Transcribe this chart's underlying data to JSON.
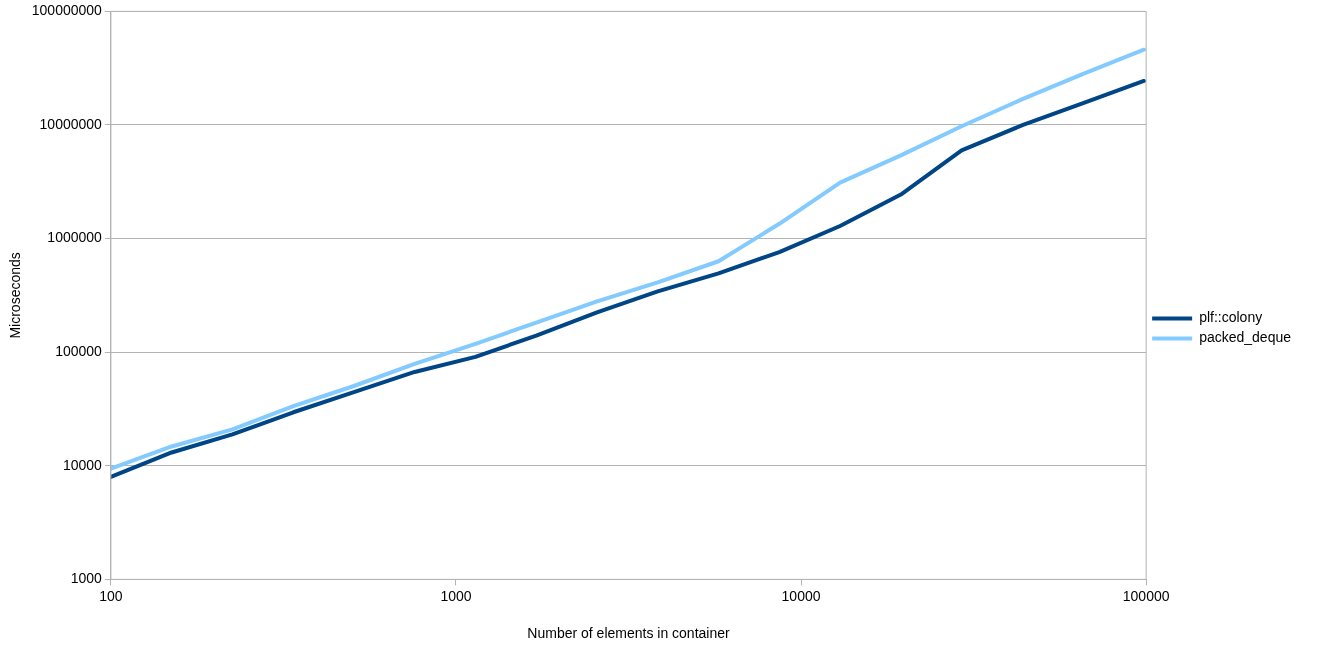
{
  "chart_data": {
    "type": "line",
    "xlabel": "Number of elements in container",
    "ylabel": "Microseconds",
    "x": [
      100,
      150,
      225,
      338,
      506,
      759,
      1139,
      1709,
      2563,
      3844,
      5767,
      8650,
      12975,
      19462,
      29193,
      43789,
      65684,
      98526
    ],
    "series": [
      {
        "name": "plf::colony",
        "color": "#004586",
        "values": [
          8000,
          13100,
          18900,
          29600,
          44600,
          67000,
          91000,
          140000,
          224000,
          343000,
          495000,
          760000,
          1290000,
          2440000,
          5980000,
          9960000,
          15600000,
          24400000
        ]
      },
      {
        "name": "packed_deque",
        "color": "#83caff",
        "values": [
          9440,
          14800,
          20900,
          33500,
          50400,
          78900,
          118600,
          182000,
          280000,
          412000,
          632000,
          1350000,
          3110000,
          5400000,
          9750000,
          16900000,
          28200000,
          46000000
        ]
      }
    ],
    "log": "xy",
    "xlim": [
      100,
      100000
    ],
    "xticks": [
      100,
      1000,
      10000,
      100000
    ],
    "ylim": [
      1000,
      100000000
    ],
    "yticks": [
      1000,
      10000,
      100000,
      1000000,
      10000000,
      100000000
    ],
    "grid": "y",
    "legend": "right",
    "marker": "none",
    "line_style": "solid"
  }
}
